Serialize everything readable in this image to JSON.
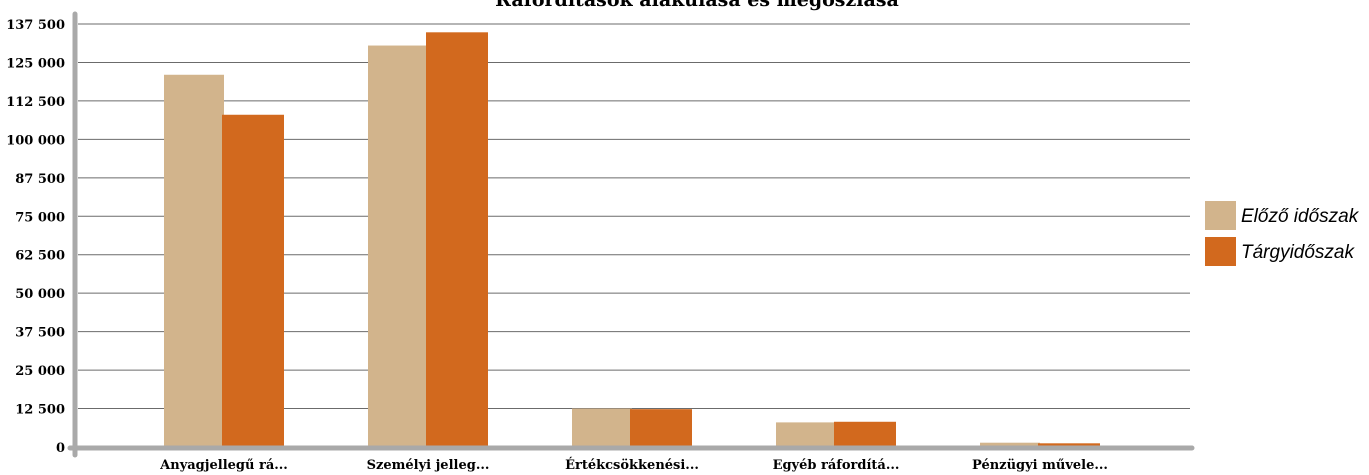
{
  "chart_data": {
    "type": "bar",
    "title": "Ráfordítások alakulása és megoszlása",
    "xlabel": "",
    "ylabel": "",
    "categories": [
      "Anyagjellegű rá...",
      "Személyi jelleg...",
      "Értékcsökkenési...",
      "Egyéb ráfordítá...",
      "Pénzügyi művele..."
    ],
    "series": [
      {
        "name": "Előző időszak",
        "color": "#d2b48c",
        "values": [
          121000,
          130500,
          12500,
          8000,
          1400
        ]
      },
      {
        "name": "Tárgyidőszak",
        "color": "#d2691e",
        "values": [
          108000,
          134800,
          12300,
          8200,
          1200
        ]
      }
    ],
    "ylim": [
      0,
      137500
    ],
    "yticks": [
      0,
      12500,
      25000,
      37500,
      50000,
      62500,
      75000,
      87500,
      100000,
      112500,
      125000,
      137500
    ],
    "ytick_labels": [
      "0",
      "12 500",
      "25 000",
      "37 500",
      "50 000",
      "62 500",
      "75 000",
      "87 500",
      "100 000",
      "112 500",
      "125 000",
      "137 500"
    ],
    "grid": true,
    "legend_position": "right"
  }
}
